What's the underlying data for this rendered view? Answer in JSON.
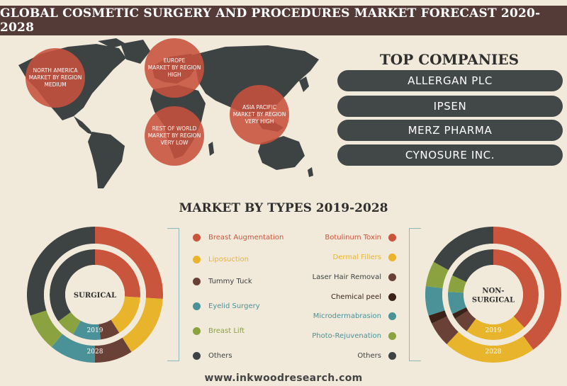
{
  "title": "GLOBAL COSMETIC SURGERY AND PROCEDURES MARKET FORECAST 2020-2028",
  "regions": [
    {
      "line1": "NORTH AMERICA",
      "line2": "MARKET BY REGION",
      "line3": "MEDIUM"
    },
    {
      "line1": "EUROPE",
      "line2": "MARKET BY REGION",
      "line3": "HIGH"
    },
    {
      "line1": "ASIA PACIFIC",
      "line2": "MARKET BY REGION",
      "line3": "VERY HIGH"
    },
    {
      "line1": "REST OF WORLD",
      "line2": "MARKET BY REGION",
      "line3": "VERY LOW"
    }
  ],
  "top_companies": {
    "heading": "TOP COMPANIES",
    "items": [
      "ALLERGAN PLC",
      "IPSEN",
      "MERZ PHARMA",
      "CYNOSURE INC."
    ]
  },
  "types_heading": "MARKET BY TYPES 2019-2028",
  "footer": "www.inkwoodresearch.com",
  "colors": {
    "red": "#c9553c",
    "yellow": "#e7b42c",
    "brown": "#6a4136",
    "teal": "#4a9297",
    "green": "#8aa23f",
    "dark": "#3d4243",
    "darkbrown": "#3a2218",
    "title_bg": "#553b37"
  },
  "chart_data": [
    {
      "type": "donut",
      "center_label": "SURGICAL",
      "rings": [
        "2019",
        "2028"
      ],
      "categories": [
        "Breast Augmentation",
        "Liposuction",
        "Tummy Tuck",
        "Eyelid Surgery",
        "Breast Lift",
        "Others"
      ],
      "colors": [
        "#c9553c",
        "#e7b42c",
        "#6a4136",
        "#4a9297",
        "#8aa23f",
        "#3d4243"
      ],
      "series": [
        {
          "name": "2019",
          "values": [
            26,
            15,
            7,
            10,
            7,
            35
          ]
        },
        {
          "name": "2028",
          "values": [
            26,
            15,
            9,
            11,
            9,
            30
          ]
        }
      ]
    },
    {
      "type": "donut",
      "center_label": "NON-SURGICAL",
      "rings": [
        "2019",
        "2028"
      ],
      "categories": [
        "Botulinum Toxin",
        "Dermal Fillers",
        "Laser Hair Removal",
        "Chemical peel",
        "Microdermabrasion",
        "Photo-Rejuvenation",
        "Others"
      ],
      "colors": [
        "#c9553c",
        "#e7b42c",
        "#6a4136",
        "#3a2218",
        "#4a9297",
        "#8aa23f",
        "#3d4243"
      ],
      "series": [
        {
          "name": "2019",
          "values": [
            38,
            22,
            6,
            2,
            8,
            6,
            18
          ]
        },
        {
          "name": "2028",
          "values": [
            40,
            22,
            6,
            2,
            7,
            6,
            17
          ]
        }
      ]
    }
  ]
}
